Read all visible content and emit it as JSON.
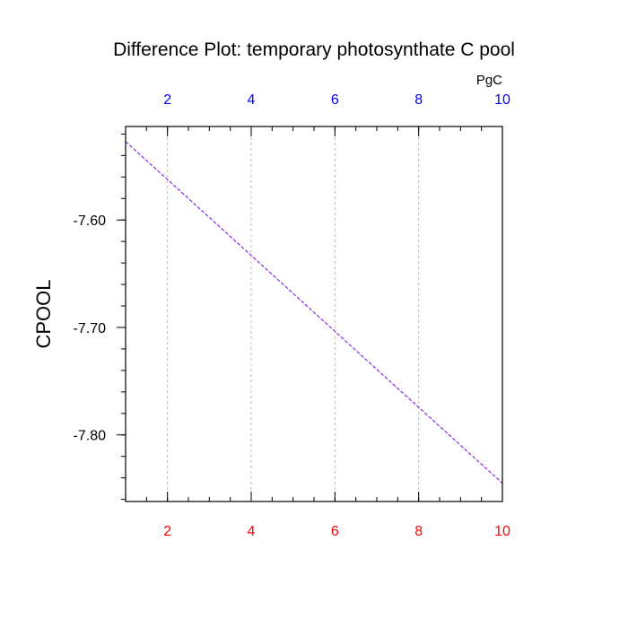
{
  "chart_data": {
    "type": "line",
    "title": "Difference Plot: temporary photosynthate C pool",
    "ylabel": "CPOOL",
    "top_axis_units": "PgC",
    "xlim": [
      1,
      10
    ],
    "ylim": [
      -7.862,
      -7.513
    ],
    "x_ticks": [
      2,
      4,
      6,
      8,
      10
    ],
    "x_tick_labels": [
      "2",
      "4",
      "6",
      "8",
      "10"
    ],
    "y_ticks": [
      -7.6,
      -7.7,
      -7.8
    ],
    "y_tick_labels": [
      "-7.60",
      "-7.70",
      "-7.80"
    ],
    "x_minor_step": 0.5,
    "y_minor_step": 0.02,
    "grid_x": true,
    "grid_y": false,
    "colors": {
      "top_tick_labels": "#0000ff",
      "bottom_tick_labels": "#ff0000",
      "line": "#8a2be2",
      "grid": "#bbbbbb"
    },
    "series": [
      {
        "x": [
          1,
          10
        ],
        "y": [
          -7.527,
          -7.845
        ]
      }
    ]
  }
}
